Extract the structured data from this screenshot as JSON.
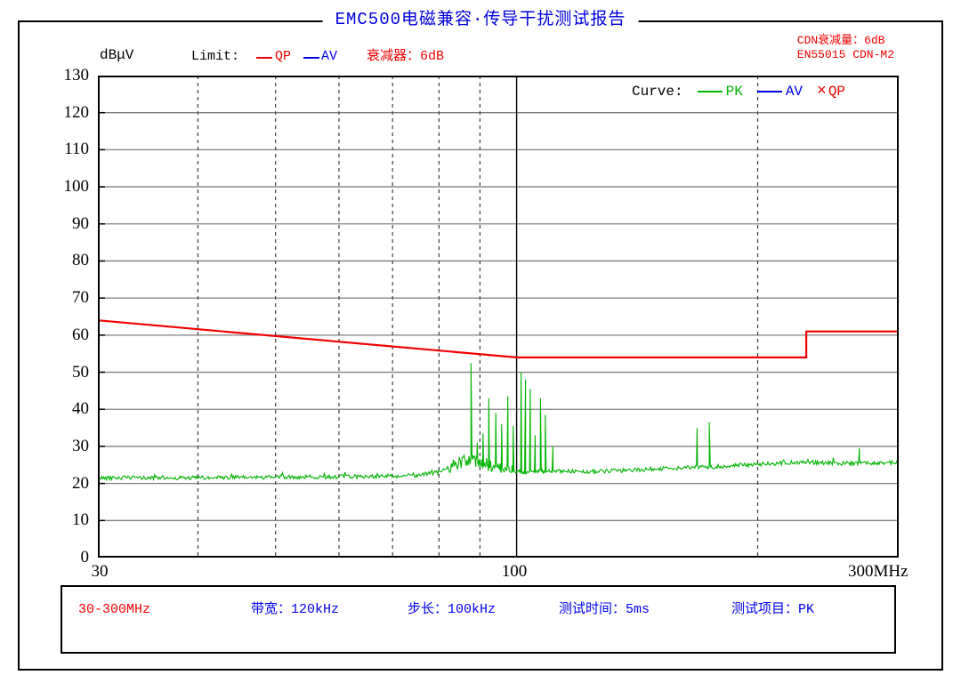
{
  "title": "EMC500电磁兼容·传导干扰测试报告",
  "header": {
    "y_unit": "dBμV",
    "limit_label": "Limit:",
    "limit_items": [
      {
        "label": "QP",
        "color": "#f00000"
      },
      {
        "label": "AV",
        "color": "#0000ee"
      }
    ],
    "attenuator": "衰减器：6dB",
    "right_line1": "CDN衰减量：6dB",
    "right_line2": "EN55015 CDN-M2"
  },
  "curve_legend": {
    "label": "Curve:",
    "items": [
      {
        "label": "PK",
        "color": "#00b400",
        "marker": "line"
      },
      {
        "label": "AV",
        "color": "#0000ee",
        "marker": "line"
      },
      {
        "label": "QP",
        "color": "#f00000",
        "marker": "cross",
        "marker_glyph": "×"
      }
    ]
  },
  "footer": {
    "range": "30-300MHz",
    "items": [
      "带宽：120kHz",
      "步长：100kHz",
      "测试时间：5ms",
      "测试项目：PK"
    ]
  },
  "colors": {
    "title_blue": "#0000dd",
    "info_blue": "#0000ee",
    "alert_red": "#f00000",
    "trace_green": "#00b400",
    "grid_gray": "#7f7f7f",
    "grid_dash": "#3c3c3c"
  },
  "chart_data": {
    "type": "line",
    "title": "EMC500电磁兼容·传导干扰测试报告",
    "standard": "EN55015 CDN-M2",
    "x_axis": {
      "scale": "log",
      "min_mhz": 30,
      "max_mhz": 300,
      "tick_labels": [
        "30",
        "100",
        "300MHz"
      ],
      "minor_gridlines_mhz": [
        40,
        50,
        60,
        70,
        80,
        90,
        200
      ],
      "major_gridlines_mhz": [
        100
      ]
    },
    "y_axis": {
      "label": "dBμV",
      "min": 0,
      "max": 130,
      "tick_step": 10,
      "gridlines": "solid-gray-every-10dB"
    },
    "series": [
      {
        "name": "QP Limit",
        "legend": "QP",
        "color": "#f00000",
        "kind": "limit-line",
        "points_mhz_db": [
          [
            30,
            64
          ],
          [
            100,
            54
          ],
          [
            230,
            54
          ],
          [
            230,
            61
          ],
          [
            300,
            61
          ]
        ]
      },
      {
        "name": "PK",
        "legend": "PK",
        "color": "#00b400",
        "kind": "noisy-trace",
        "noise_db_normal": 0.55,
        "noise_db_82_99mhz": 1.7,
        "baseline_mhz_db": [
          [
            30,
            21.5
          ],
          [
            40,
            21.5
          ],
          [
            50,
            21.7
          ],
          [
            60,
            21.8
          ],
          [
            70,
            22.0
          ],
          [
            75,
            22.2
          ],
          [
            80,
            23.0
          ],
          [
            84,
            25.0
          ],
          [
            87,
            26.5
          ],
          [
            90,
            26.0
          ],
          [
            93,
            24.5
          ],
          [
            97,
            23.5
          ],
          [
            100,
            23.0
          ],
          [
            105,
            23.2
          ],
          [
            110,
            23.3
          ],
          [
            120,
            23.2
          ],
          [
            130,
            23.3
          ],
          [
            140,
            23.6
          ],
          [
            150,
            24.0
          ],
          [
            160,
            24.2
          ],
          [
            170,
            24.4
          ],
          [
            180,
            24.6
          ],
          [
            190,
            24.9
          ],
          [
            200,
            25.1
          ],
          [
            215,
            25.5
          ],
          [
            230,
            25.8
          ],
          [
            245,
            25.5
          ],
          [
            260,
            25.4
          ],
          [
            275,
            25.5
          ],
          [
            290,
            25.6
          ],
          [
            300,
            25.6
          ]
        ],
        "spikes_mhz_db": [
          [
            87.7,
            52.5
          ],
          [
            89.3,
            31.0
          ],
          [
            90.8,
            33.5
          ],
          [
            92.3,
            43.0
          ],
          [
            94.2,
            39.0
          ],
          [
            95.8,
            36.0
          ],
          [
            97.5,
            43.5
          ],
          [
            99.0,
            35.5
          ],
          [
            101.3,
            50.0
          ],
          [
            102.6,
            48.0
          ],
          [
            104.0,
            45.5
          ],
          [
            105.5,
            33.0
          ],
          [
            107.1,
            43.0
          ],
          [
            108.6,
            38.5
          ],
          [
            111.0,
            30.0
          ],
          [
            168.0,
            35.0
          ],
          [
            174.0,
            36.5
          ],
          [
            268.0,
            29.5
          ]
        ]
      },
      {
        "name": "AV",
        "legend": "AV",
        "color": "#0000ee",
        "kind": "noisy-trace",
        "visible": false,
        "note": "listed in legend, no trace drawn on plot"
      }
    ]
  }
}
